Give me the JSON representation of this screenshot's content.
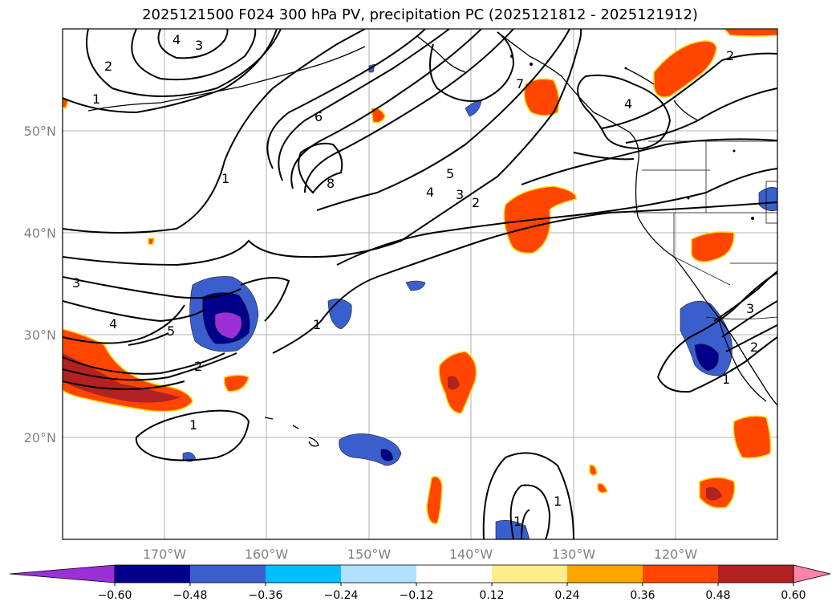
{
  "title": "2025121500 F024 300 hPa PV, precipitation PC (2025121812 - 2025121912)",
  "lat_labels": [
    "50°N",
    "40°N",
    "30°N",
    "20°N"
  ],
  "lon_labels": [
    "170°W",
    "160°W",
    "150°W",
    "140°W",
    "130°W",
    "120°W"
  ],
  "colorbar": {
    "ticks": [
      "−0.60",
      "−0.48",
      "−0.36",
      "−0.24",
      "−0.12",
      "0.12",
      "0.24",
      "0.36",
      "0.48",
      "0.60"
    ],
    "colors": [
      "#9b30d9",
      "#00008b",
      "#3a5fcd",
      "#00bfff",
      "#b0e2ff",
      "#ffffff",
      "#ffec8b",
      "#ffa500",
      "#ff4500",
      "#b22222",
      "#ff82ab"
    ]
  },
  "contour_labels": [
    "4",
    "3",
    "2",
    "1",
    "6",
    "8",
    "5",
    "4",
    "3",
    "2",
    "7",
    "4",
    "2",
    "1",
    "3",
    "4",
    "5",
    "2",
    "1",
    "1",
    "1",
    "3",
    "2",
    "1",
    "1"
  ]
}
